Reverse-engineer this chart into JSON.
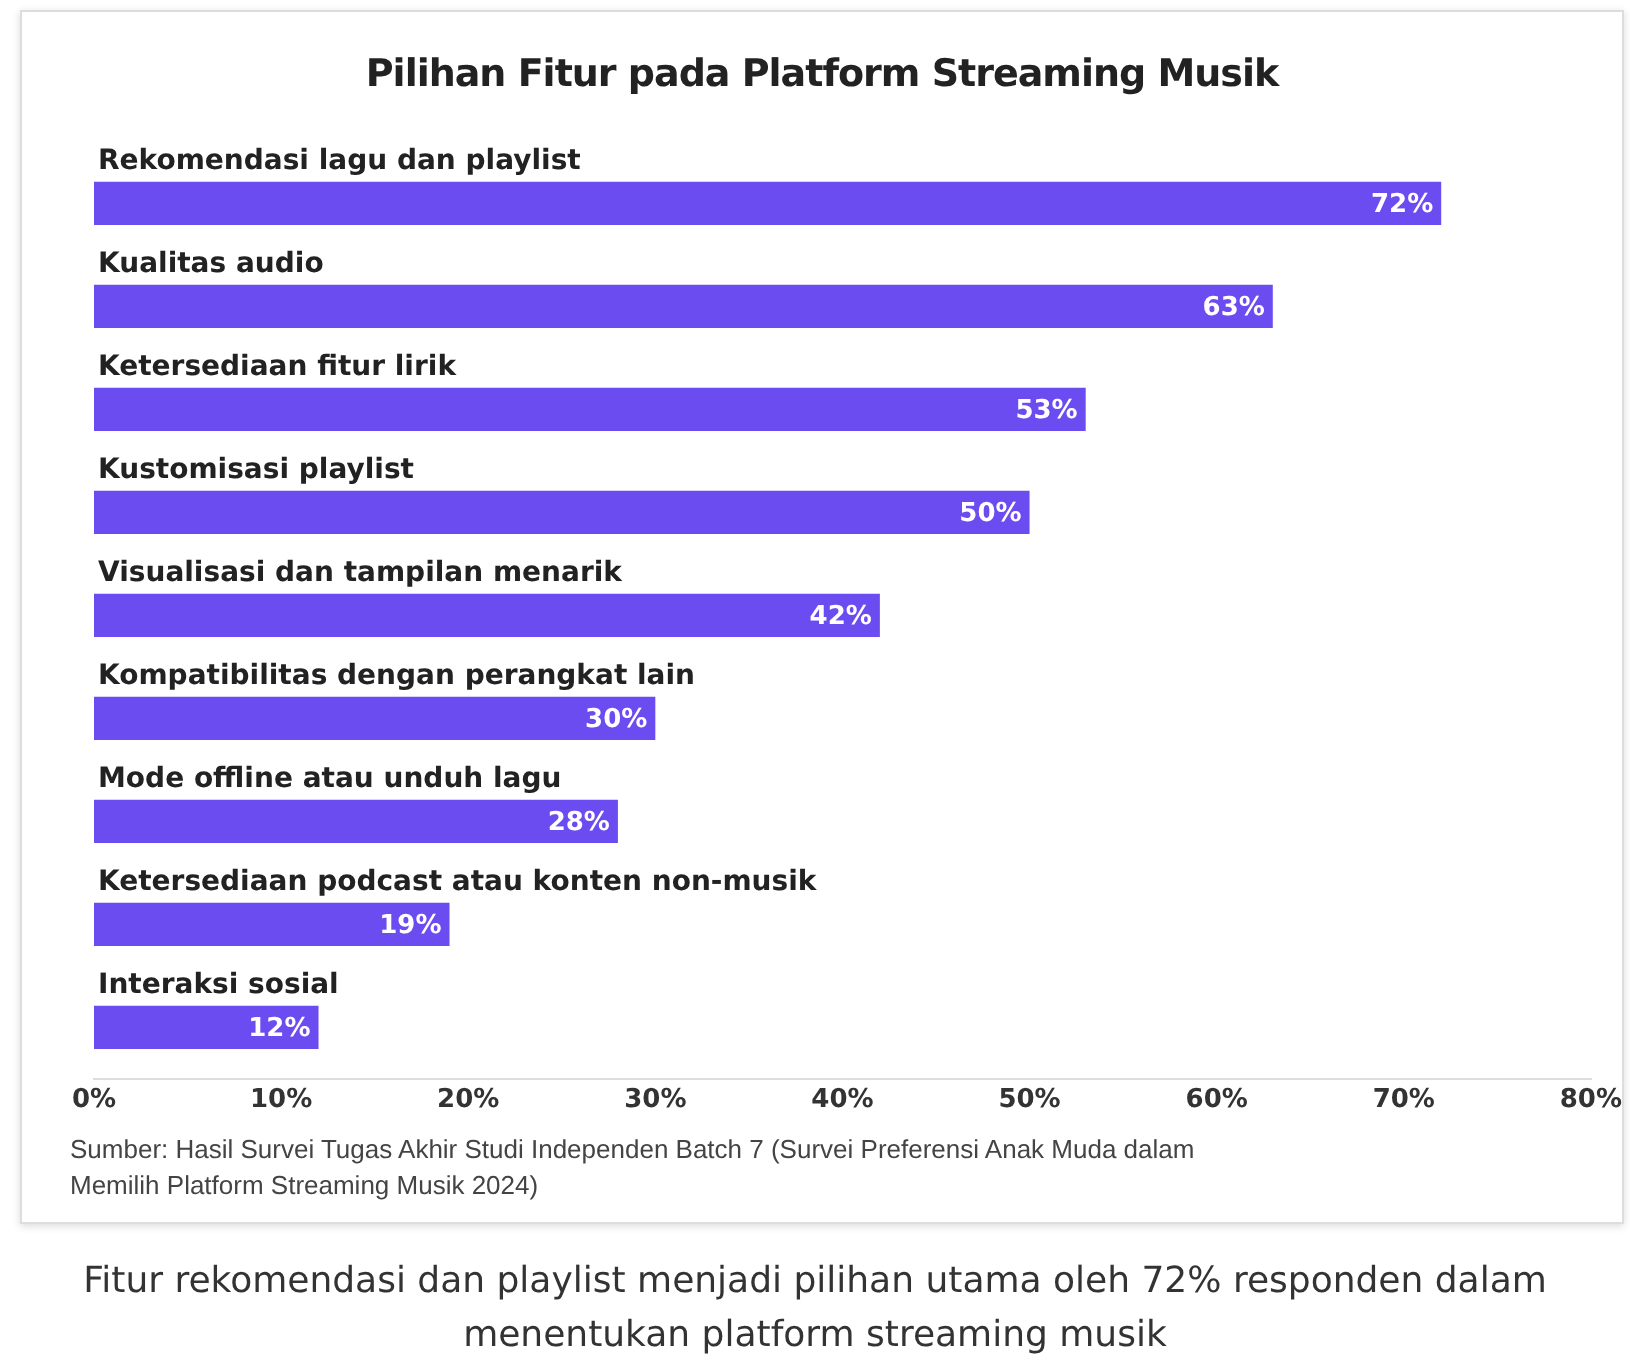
{
  "chart_data": {
    "type": "bar",
    "orientation": "horizontal",
    "title": "Pilihan Fitur pada Platform Streaming Musik",
    "categories": [
      "Rekomendasi lagu dan playlist",
      "Kualitas audio",
      "Ketersediaan fitur lirik",
      "Kustomisasi playlist",
      "Visualisasi dan tampilan menarik",
      "Kompatibilitas dengan perangkat lain",
      "Mode offline atau unduh lagu",
      "Ketersediaan podcast atau konten non-musik",
      "Interaksi sosial"
    ],
    "values": [
      72,
      63,
      53,
      50,
      42,
      30,
      28,
      19,
      12
    ],
    "value_labels": [
      "72%",
      "63%",
      "53%",
      "50%",
      "42%",
      "30%",
      "28%",
      "19%",
      "12%"
    ],
    "color": "#6a4cf0",
    "xlim": [
      0,
      80
    ],
    "xticks": [
      {
        "value": 0,
        "label": "0%"
      },
      {
        "value": 10,
        "label": "10%"
      },
      {
        "value": 20,
        "label": "20%"
      },
      {
        "value": 30,
        "label": "30%"
      },
      {
        "value": 40,
        "label": "40%"
      },
      {
        "value": 50,
        "label": "50%"
      },
      {
        "value": 60,
        "label": "60%"
      },
      {
        "value": 70,
        "label": "70%"
      },
      {
        "value": 80,
        "label": "80%"
      }
    ],
    "grid": false,
    "annotations": [
      "Sumber: Hasil Survei Tugas Akhir Studi Independen Batch 7 (Survei Preferensi Anak Muda dalam Memilih Platform Streaming Musik 2024)",
      "Fitur rekomendasi dan playlist menjadi pilihan utama oleh 72% responden dalam menentukan platform streaming musik"
    ]
  }
}
